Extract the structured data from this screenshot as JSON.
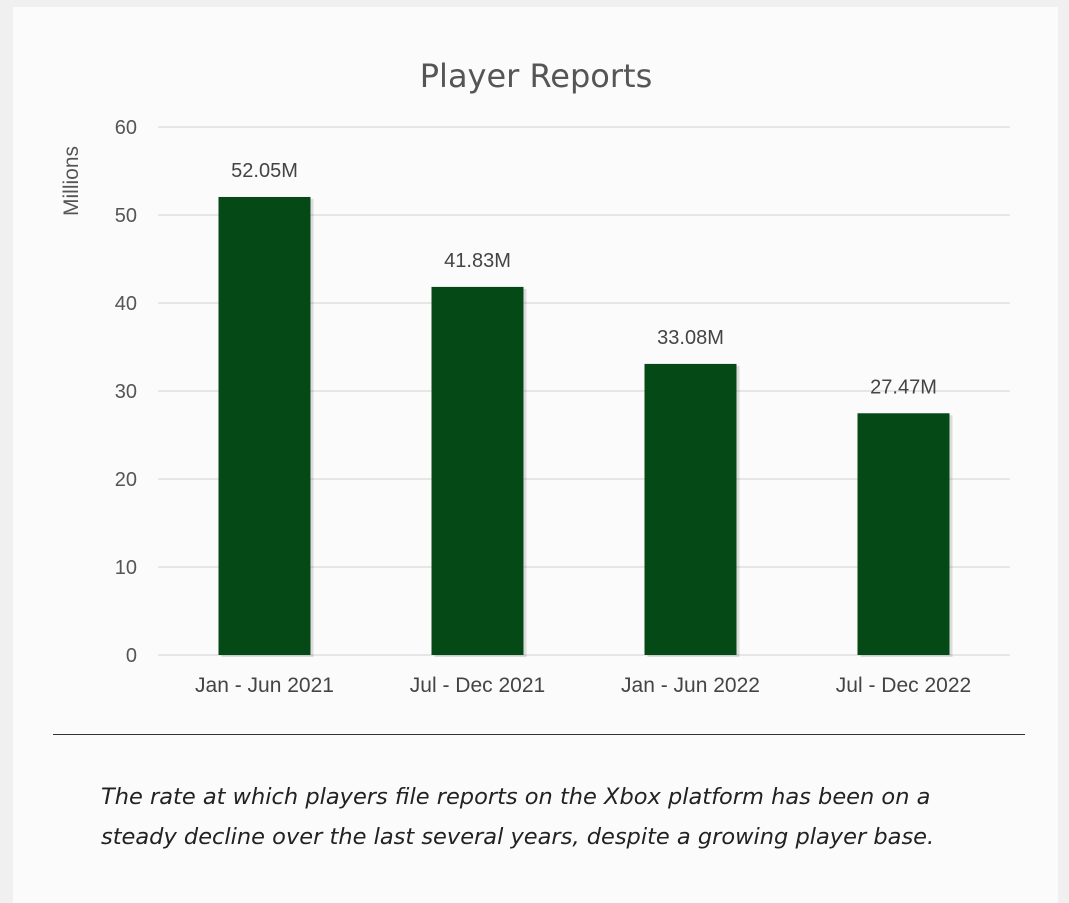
{
  "chart_data": {
    "type": "bar",
    "title": "Player Reports",
    "ylabel": "Millions",
    "xlabel": "",
    "categories": [
      "Jan - Jun 2021",
      "Jul - Dec 2021",
      "Jan - Jun 2022",
      "Jul - Dec 2022"
    ],
    "values": [
      52.05,
      41.83,
      33.08,
      27.47
    ],
    "data_labels": [
      "52.05M",
      "41.83M",
      "33.08M",
      "27.47M"
    ],
    "yticks": [
      "0",
      "10",
      "20",
      "30",
      "40",
      "50",
      "60"
    ],
    "ylim": [
      0,
      60
    ],
    "grid": true,
    "bar_color": "#054a16"
  },
  "caption": "The rate at which players file reports on the Xbox platform has been on a steady decline over the last several years, despite a growing player base."
}
